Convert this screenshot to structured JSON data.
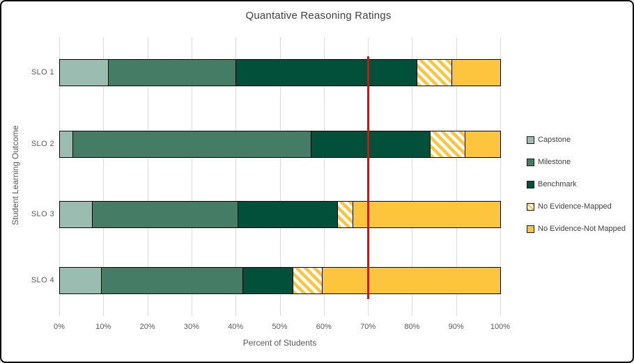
{
  "chart_data": {
    "type": "bar",
    "orientation": "horizontal",
    "stacked": true,
    "title": "Quantative Reasoning Ratings",
    "xlabel": "Percent of Students",
    "ylabel": "Student Learning Outcome",
    "categories": [
      "SLO 1",
      "SLO 2",
      "SLO 3",
      "SLO 4"
    ],
    "series": [
      {
        "name": "Capstone",
        "pattern": "solid",
        "color": "#9ABCB1",
        "values": [
          11,
          3,
          7.5,
          9.5
        ]
      },
      {
        "name": "Milestone",
        "pattern": "solid",
        "color": "#447C66",
        "values": [
          29,
          54,
          33,
          32
        ]
      },
      {
        "name": "Benchmark",
        "pattern": "solid",
        "color": "#02503A",
        "values": [
          41,
          27,
          22.5,
          11.5
        ]
      },
      {
        "name": "No Evidence-Mapped",
        "pattern": "diagonal-stripes",
        "color": "#FDC53E",
        "values": [
          8,
          8,
          3.5,
          6.5
        ]
      },
      {
        "name": "No Evidence-Not Mapped",
        "pattern": "solid",
        "color": "#FDC53E",
        "values": [
          11,
          8,
          33.5,
          40.5
        ]
      }
    ],
    "x_ticks": [
      "0%",
      "10%",
      "20%",
      "30%",
      "40%",
      "50%",
      "60%",
      "70%",
      "80%",
      "90%",
      "100%"
    ],
    "xlim": [
      0,
      100
    ],
    "grid": "vertical",
    "legend_position": "right",
    "reference_line": {
      "x": 70,
      "color": "#FF0000"
    }
  },
  "colors": {
    "gridline": "#D9D9D9",
    "segment_border": "#000000",
    "axis_text": "#595959",
    "title_text": "#404040",
    "stripe_background": "#FFFFFF"
  }
}
